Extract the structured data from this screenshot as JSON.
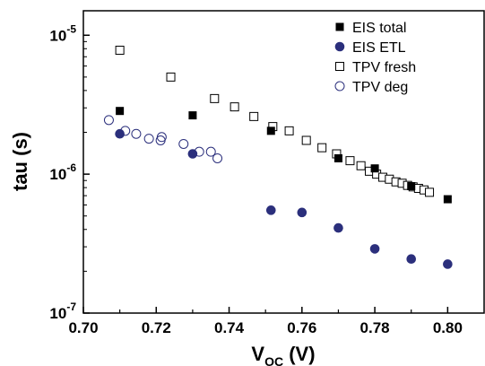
{
  "chart_data": {
    "type": "scatter",
    "xlabel_main": "V",
    "xlabel_sub": "OC",
    "xlabel_unit": " (V)",
    "ylabel": "tau (s)",
    "xlim": [
      0.7,
      0.81
    ],
    "ylim": [
      1e-07,
      1.5e-05
    ],
    "yscale": "log",
    "grid": false,
    "legend_position": "top-right",
    "x_ticks": [
      "0.70",
      "0.72",
      "0.74",
      "0.76",
      "0.78",
      "0.80"
    ],
    "x_tick_values": [
      0.7,
      0.72,
      0.74,
      0.76,
      0.78,
      0.8
    ],
    "y_ticks": [
      {
        "value": 1e-07,
        "base": "10",
        "exp": "-7"
      },
      {
        "value": 1e-06,
        "base": "10",
        "exp": "-6"
      },
      {
        "value": 1e-05,
        "base": "10",
        "exp": "-5"
      }
    ],
    "series": [
      {
        "name": "EIS total",
        "marker": "square-filled",
        "color": "#000000",
        "x": [
          0.71,
          0.73,
          0.7515,
          0.77,
          0.78,
          0.79,
          0.8
        ],
        "y": [
          2.85e-06,
          2.65e-06,
          2.05e-06,
          1.3e-06,
          1.1e-06,
          8.2e-07,
          6.6e-07
        ]
      },
      {
        "name": "EIS ETL",
        "marker": "circle-filled",
        "color": "#2b2f7c",
        "x": [
          0.71,
          0.73,
          0.7515,
          0.76,
          0.77,
          0.78,
          0.79,
          0.8
        ],
        "y": [
          1.95e-06,
          1.4e-06,
          5.5e-07,
          5.3e-07,
          4.1e-07,
          2.9e-07,
          2.45e-07,
          2.25e-07
        ]
      },
      {
        "name": "TPV fresh",
        "marker": "square-open",
        "color": "#000000",
        "x": [
          0.71,
          0.724,
          0.736,
          0.7415,
          0.7468,
          0.752,
          0.7565,
          0.7612,
          0.7655,
          0.7695,
          0.7732,
          0.7762,
          0.7785,
          0.7805,
          0.7822,
          0.784,
          0.7858,
          0.7875,
          0.789,
          0.7905,
          0.792,
          0.7935,
          0.795
        ],
        "y": [
          7.8e-06,
          5e-06,
          3.5e-06,
          3.05e-06,
          2.6e-06,
          2.2e-06,
          2.05e-06,
          1.75e-06,
          1.55e-06,
          1.4e-06,
          1.25e-06,
          1.15e-06,
          1.05e-06,
          1e-06,
          9.5e-07,
          9.2e-07,
          8.8e-07,
          8.6e-07,
          8.3e-07,
          8.1e-07,
          7.9e-07,
          7.7e-07,
          7.4e-07
        ]
      },
      {
        "name": "TPV deg",
        "marker": "circle-open",
        "color": "#2b2f7c",
        "x": [
          0.707,
          0.7115,
          0.7145,
          0.718,
          0.7212,
          0.7215,
          0.7275,
          0.7318,
          0.735,
          0.7368
        ],
        "y": [
          2.45e-06,
          2.05e-06,
          1.95e-06,
          1.8e-06,
          1.75e-06,
          1.85e-06,
          1.65e-06,
          1.45e-06,
          1.45e-06,
          1.3e-06
        ]
      }
    ]
  }
}
